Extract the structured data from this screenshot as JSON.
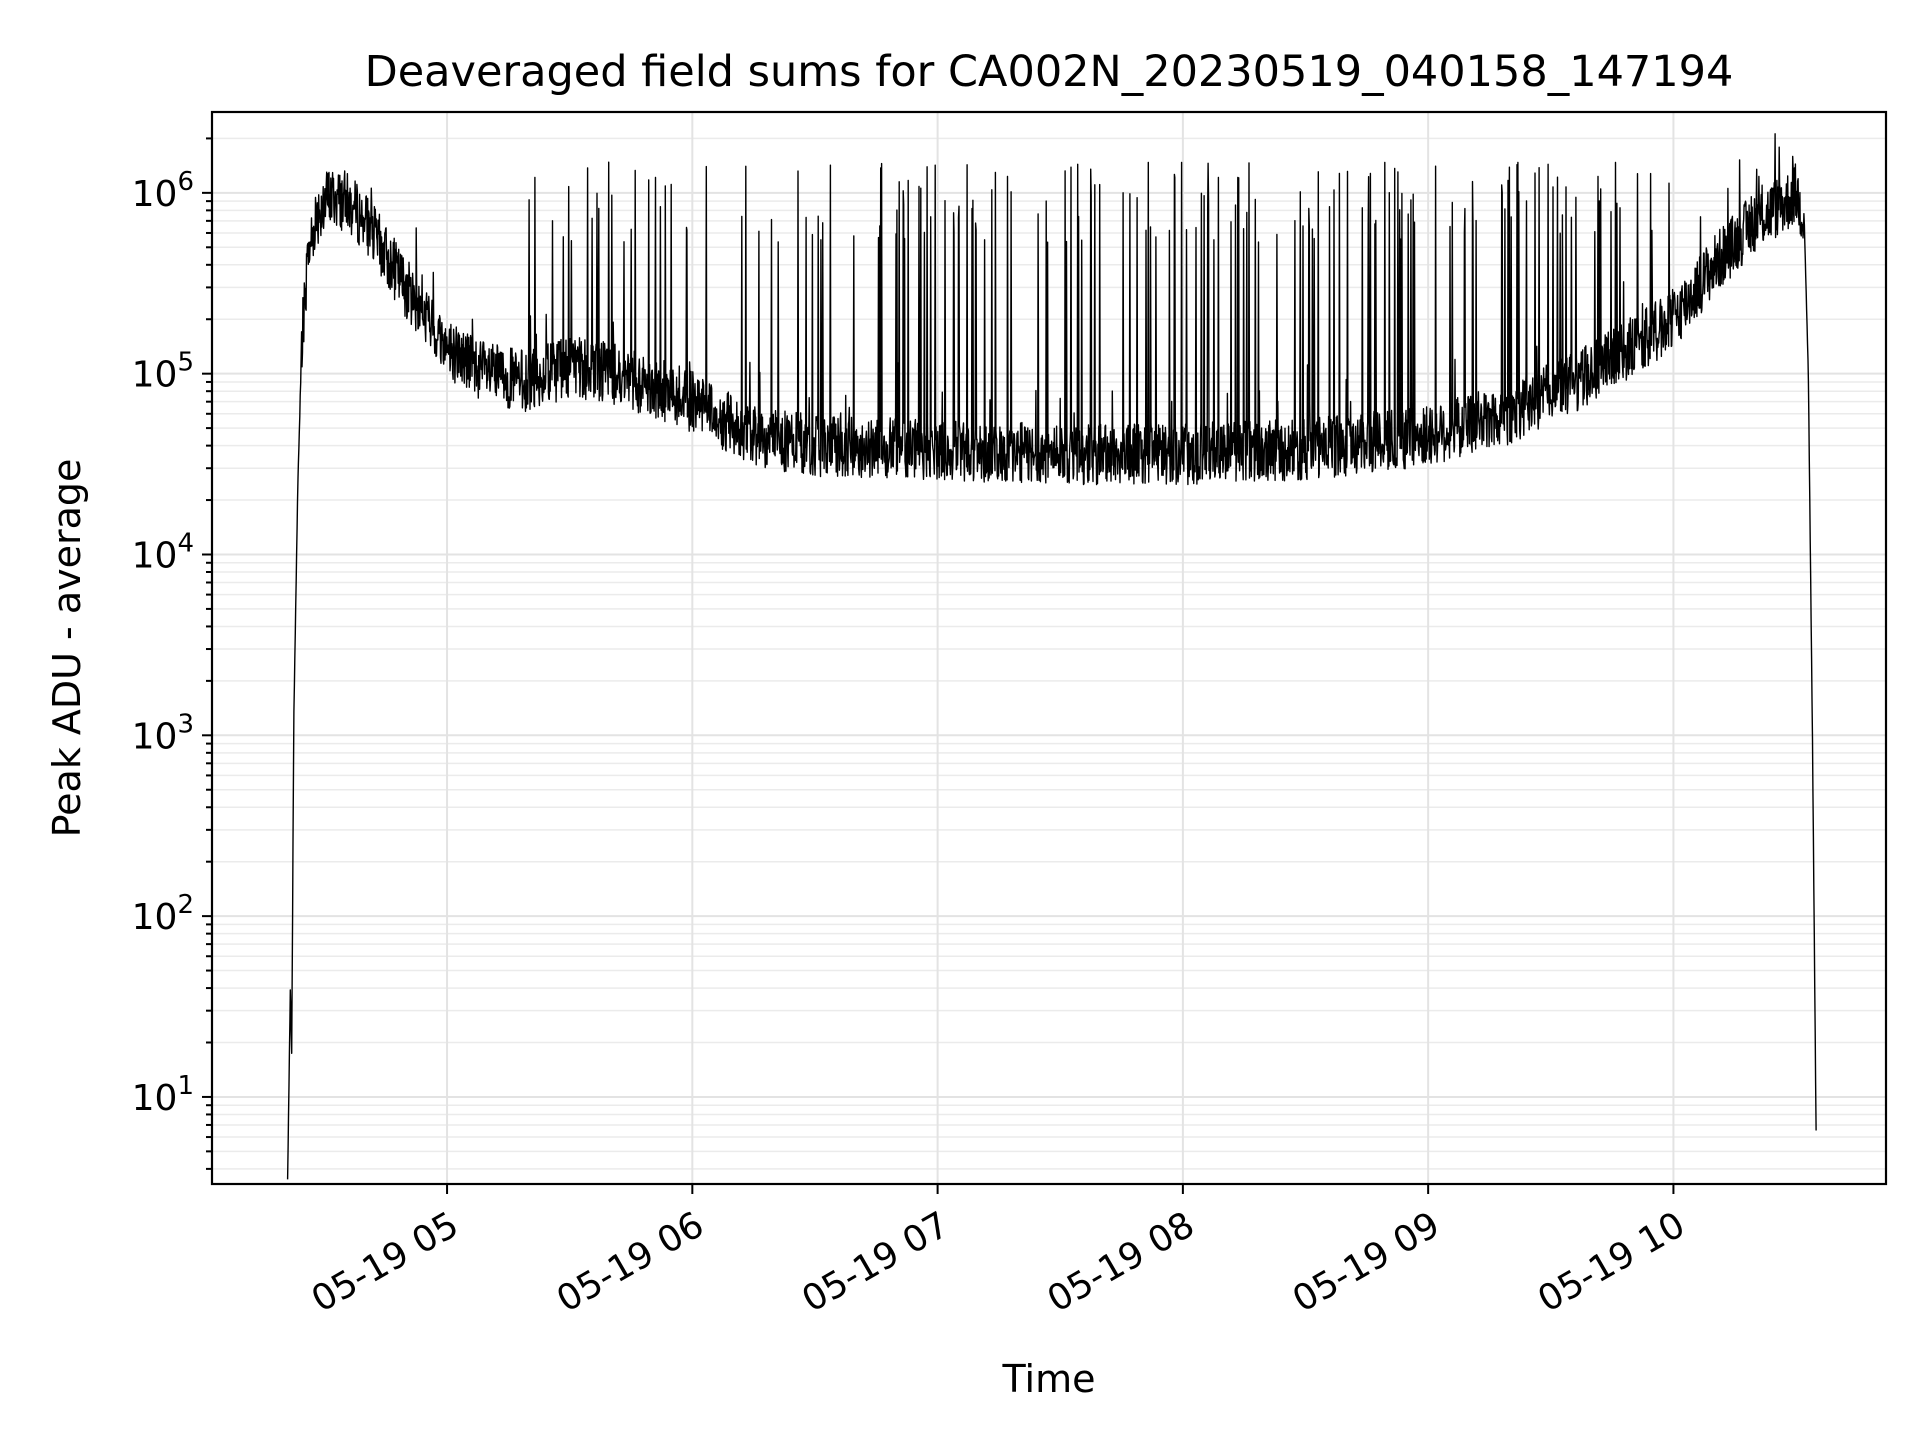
{
  "chart_data": {
    "type": "line",
    "title": "Deaveraged field sums for CA002N_20230519_040158_147194",
    "xlabel": "Time",
    "ylabel": "Peak ADU - average",
    "yscale": "log",
    "grid": true,
    "xlim": [
      "2023-05-19 04:02:30",
      "2023-05-19 10:52:00"
    ],
    "ylim": [
      3.3,
      2800000
    ],
    "x_ticks": [
      {
        "value": "2023-05-19 05:00",
        "label": "05-19 05"
      },
      {
        "value": "2023-05-19 06:00",
        "label": "05-19 06"
      },
      {
        "value": "2023-05-19 07:00",
        "label": "05-19 07"
      },
      {
        "value": "2023-05-19 08:00",
        "label": "05-19 08"
      },
      {
        "value": "2023-05-19 09:00",
        "label": "05-19 09"
      },
      {
        "value": "2023-05-19 10:00",
        "label": "05-19 10"
      }
    ],
    "y_ticks": [
      {
        "value": 10,
        "base": "10",
        "exp": "1"
      },
      {
        "value": 100,
        "base": "10",
        "exp": "2"
      },
      {
        "value": 1000,
        "base": "10",
        "exp": "3"
      },
      {
        "value": 10000,
        "base": "10",
        "exp": "4"
      },
      {
        "value": 100000,
        "base": "10",
        "exp": "5"
      },
      {
        "value": 1000000,
        "base": "10",
        "exp": "6"
      }
    ],
    "series": [
      {
        "color": "#000000",
        "baseline": [
          [
            "2023-05-19 04:21",
            3.5
          ],
          [
            "2023-05-19 04:21:40",
            40
          ],
          [
            "2023-05-19 04:22",
            17
          ],
          [
            "2023-05-19 04:22:30",
            1200
          ],
          [
            "2023-05-19 04:23:30",
            25000
          ],
          [
            "2023-05-19 04:24:30",
            150000
          ],
          [
            "2023-05-19 04:26",
            450000
          ],
          [
            "2023-05-19 04:28",
            750000
          ],
          [
            "2023-05-19 04:31",
            950000
          ],
          [
            "2023-05-19 04:35",
            900000
          ],
          [
            "2023-05-19 04:40",
            700000
          ],
          [
            "2023-05-19 04:45",
            450000
          ],
          [
            "2023-05-19 04:50",
            300000
          ],
          [
            "2023-05-19 04:55",
            200000
          ],
          [
            "2023-05-19 05:00",
            140000
          ],
          [
            "2023-05-19 05:10",
            100000
          ],
          [
            "2023-05-19 05:20",
            90000
          ],
          [
            "2023-05-19 05:30",
            110000
          ],
          [
            "2023-05-19 05:40",
            100000
          ],
          [
            "2023-05-19 05:50",
            85000
          ],
          [
            "2023-05-19 06:00",
            70000
          ],
          [
            "2023-05-19 06:15",
            45000
          ],
          [
            "2023-05-19 06:30",
            40000
          ],
          [
            "2023-05-19 07:00",
            38000
          ],
          [
            "2023-05-19 07:30",
            36000
          ],
          [
            "2023-05-19 08:00",
            36000
          ],
          [
            "2023-05-19 08:30",
            38000
          ],
          [
            "2023-05-19 09:00",
            45000
          ],
          [
            "2023-05-19 09:20",
            60000
          ],
          [
            "2023-05-19 09:40",
            100000
          ],
          [
            "2023-05-19 10:00",
            200000
          ],
          [
            "2023-05-19 10:10",
            400000
          ],
          [
            "2023-05-19 10:20",
            700000
          ],
          [
            "2023-05-19 10:28",
            900000
          ],
          [
            "2023-05-19 10:30",
            1000000
          ],
          [
            "2023-05-19 10:32",
            700000
          ],
          [
            "2023-05-19 10:33",
            100000
          ],
          [
            "2023-05-19 10:34",
            1000
          ],
          [
            "2023-05-19 10:35",
            3.5
          ]
        ],
        "spikes_start": "2023-05-19 05:20",
        "spikes_end": "2023-05-19 10:00",
        "spike_peak": 1500000
      }
    ]
  }
}
